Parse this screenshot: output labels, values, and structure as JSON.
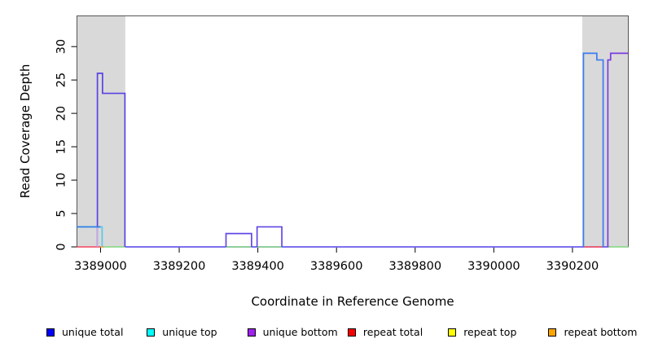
{
  "chart_data": {
    "type": "line",
    "title": "",
    "xlabel": "Coordinate in Reference Genome",
    "ylabel": "Read Coverage Depth",
    "xlim": [
      3388940,
      3390342
    ],
    "ylim": [
      0,
      34.6
    ],
    "x_ticks": [
      3389000,
      3389200,
      3389400,
      3389600,
      3389800,
      3390000,
      3390200
    ],
    "y_ticks": [
      0,
      5,
      10,
      15,
      20,
      25,
      30
    ],
    "grid": false,
    "legend_position": "bottom",
    "background_bands": [
      {
        "name": "left-gray-band",
        "x0": 3388940,
        "x1": 3389063,
        "color": "#d9d9d9"
      },
      {
        "name": "right-gray-band",
        "x0": 3390225,
        "x1": 3390342,
        "color": "#d9d9d9"
      }
    ],
    "legend": [
      {
        "label": "unique total",
        "color": "#0000ff"
      },
      {
        "label": "unique top",
        "color": "#00ffff"
      },
      {
        "label": "unique bottom",
        "color": "#a020f0"
      },
      {
        "label": "repeat total",
        "color": "#ff0000"
      },
      {
        "label": "repeat top",
        "color": "#ffff00"
      },
      {
        "label": "repeat bottom",
        "color": "#ffa500"
      }
    ],
    "series": [
      {
        "name": "zero-baseline-unique",
        "color": "#6a5bee",
        "points": [
          [
            3389063,
            0
          ],
          [
            3390290,
            0
          ]
        ]
      },
      {
        "name": "zero-repeat-top-left",
        "color": "#8fd98f",
        "points": [
          [
            3389008,
            0
          ],
          [
            3389063,
            0
          ]
        ]
      },
      {
        "name": "zero-repeat-top-mid-1",
        "color": "#8fd98f",
        "points": [
          [
            3389319,
            0
          ],
          [
            3389384,
            0
          ]
        ]
      },
      {
        "name": "zero-repeat-top-mid-2",
        "color": "#8fd98f",
        "points": [
          [
            3389398,
            0
          ],
          [
            3389461,
            0
          ]
        ]
      },
      {
        "name": "zero-repeat-top-right",
        "color": "#8fd98f",
        "points": [
          [
            3390293,
            0
          ],
          [
            3390342,
            0
          ]
        ]
      },
      {
        "name": "zero-repeat-total-left",
        "color": "#f25c6e",
        "points": [
          [
            3388940,
            0
          ],
          [
            3389000,
            0
          ]
        ]
      },
      {
        "name": "zero-repeat-total-right",
        "color": "#f25c6e",
        "points": [
          [
            3390229,
            0
          ],
          [
            3390277,
            0
          ]
        ]
      },
      {
        "name": "zero-repeat-bottom-left",
        "color": "#ffa020",
        "points": [
          [
            3389000,
            0
          ],
          [
            3389008,
            0
          ]
        ]
      },
      {
        "name": "unique-top-left",
        "color": "#55cbe8",
        "points": [
          [
            3388940,
            3
          ],
          [
            3389004,
            3
          ],
          [
            3389004,
            0
          ]
        ]
      },
      {
        "name": "unique-bottom-left-block",
        "color": "#5743e3",
        "points": [
          [
            3388992,
            0
          ],
          [
            3388992,
            26
          ],
          [
            3389005,
            26
          ],
          [
            3389005,
            23
          ],
          [
            3389062,
            23
          ],
          [
            3389062,
            0
          ]
        ]
      },
      {
        "name": "unique-bottom-left-stub",
        "color": "#c9a9e0",
        "points": [
          [
            3388992,
            0
          ],
          [
            3388992,
            3
          ]
        ]
      },
      {
        "name": "unique-total-left",
        "color": "#2e7be8",
        "points": [
          [
            3388940,
            3
          ],
          [
            3389000,
            3
          ]
        ]
      },
      {
        "name": "unique-mid-block-1",
        "color": "#6347e6",
        "points": [
          [
            3389319,
            0
          ],
          [
            3389319,
            2
          ],
          [
            3389384,
            2
          ],
          [
            3389384,
            0
          ]
        ]
      },
      {
        "name": "unique-mid-block-2",
        "color": "#6347e6",
        "points": [
          [
            3389398,
            0
          ],
          [
            3389398,
            3
          ],
          [
            3389461,
            3
          ],
          [
            3389461,
            0
          ]
        ]
      },
      {
        "name": "unique-top-right-block",
        "color": "#3b7bf0",
        "points": [
          [
            3390228,
            0
          ],
          [
            3390228,
            29
          ],
          [
            3390262,
            29
          ],
          [
            3390262,
            28
          ],
          [
            3390278,
            28
          ],
          [
            3390278,
            0
          ]
        ]
      },
      {
        "name": "unique-bottom-right-block",
        "color": "#7b3be0",
        "points": [
          [
            3390290,
            0
          ],
          [
            3390290,
            28
          ],
          [
            3390297,
            28
          ],
          [
            3390297,
            29
          ],
          [
            3390342,
            29
          ]
        ]
      }
    ]
  }
}
